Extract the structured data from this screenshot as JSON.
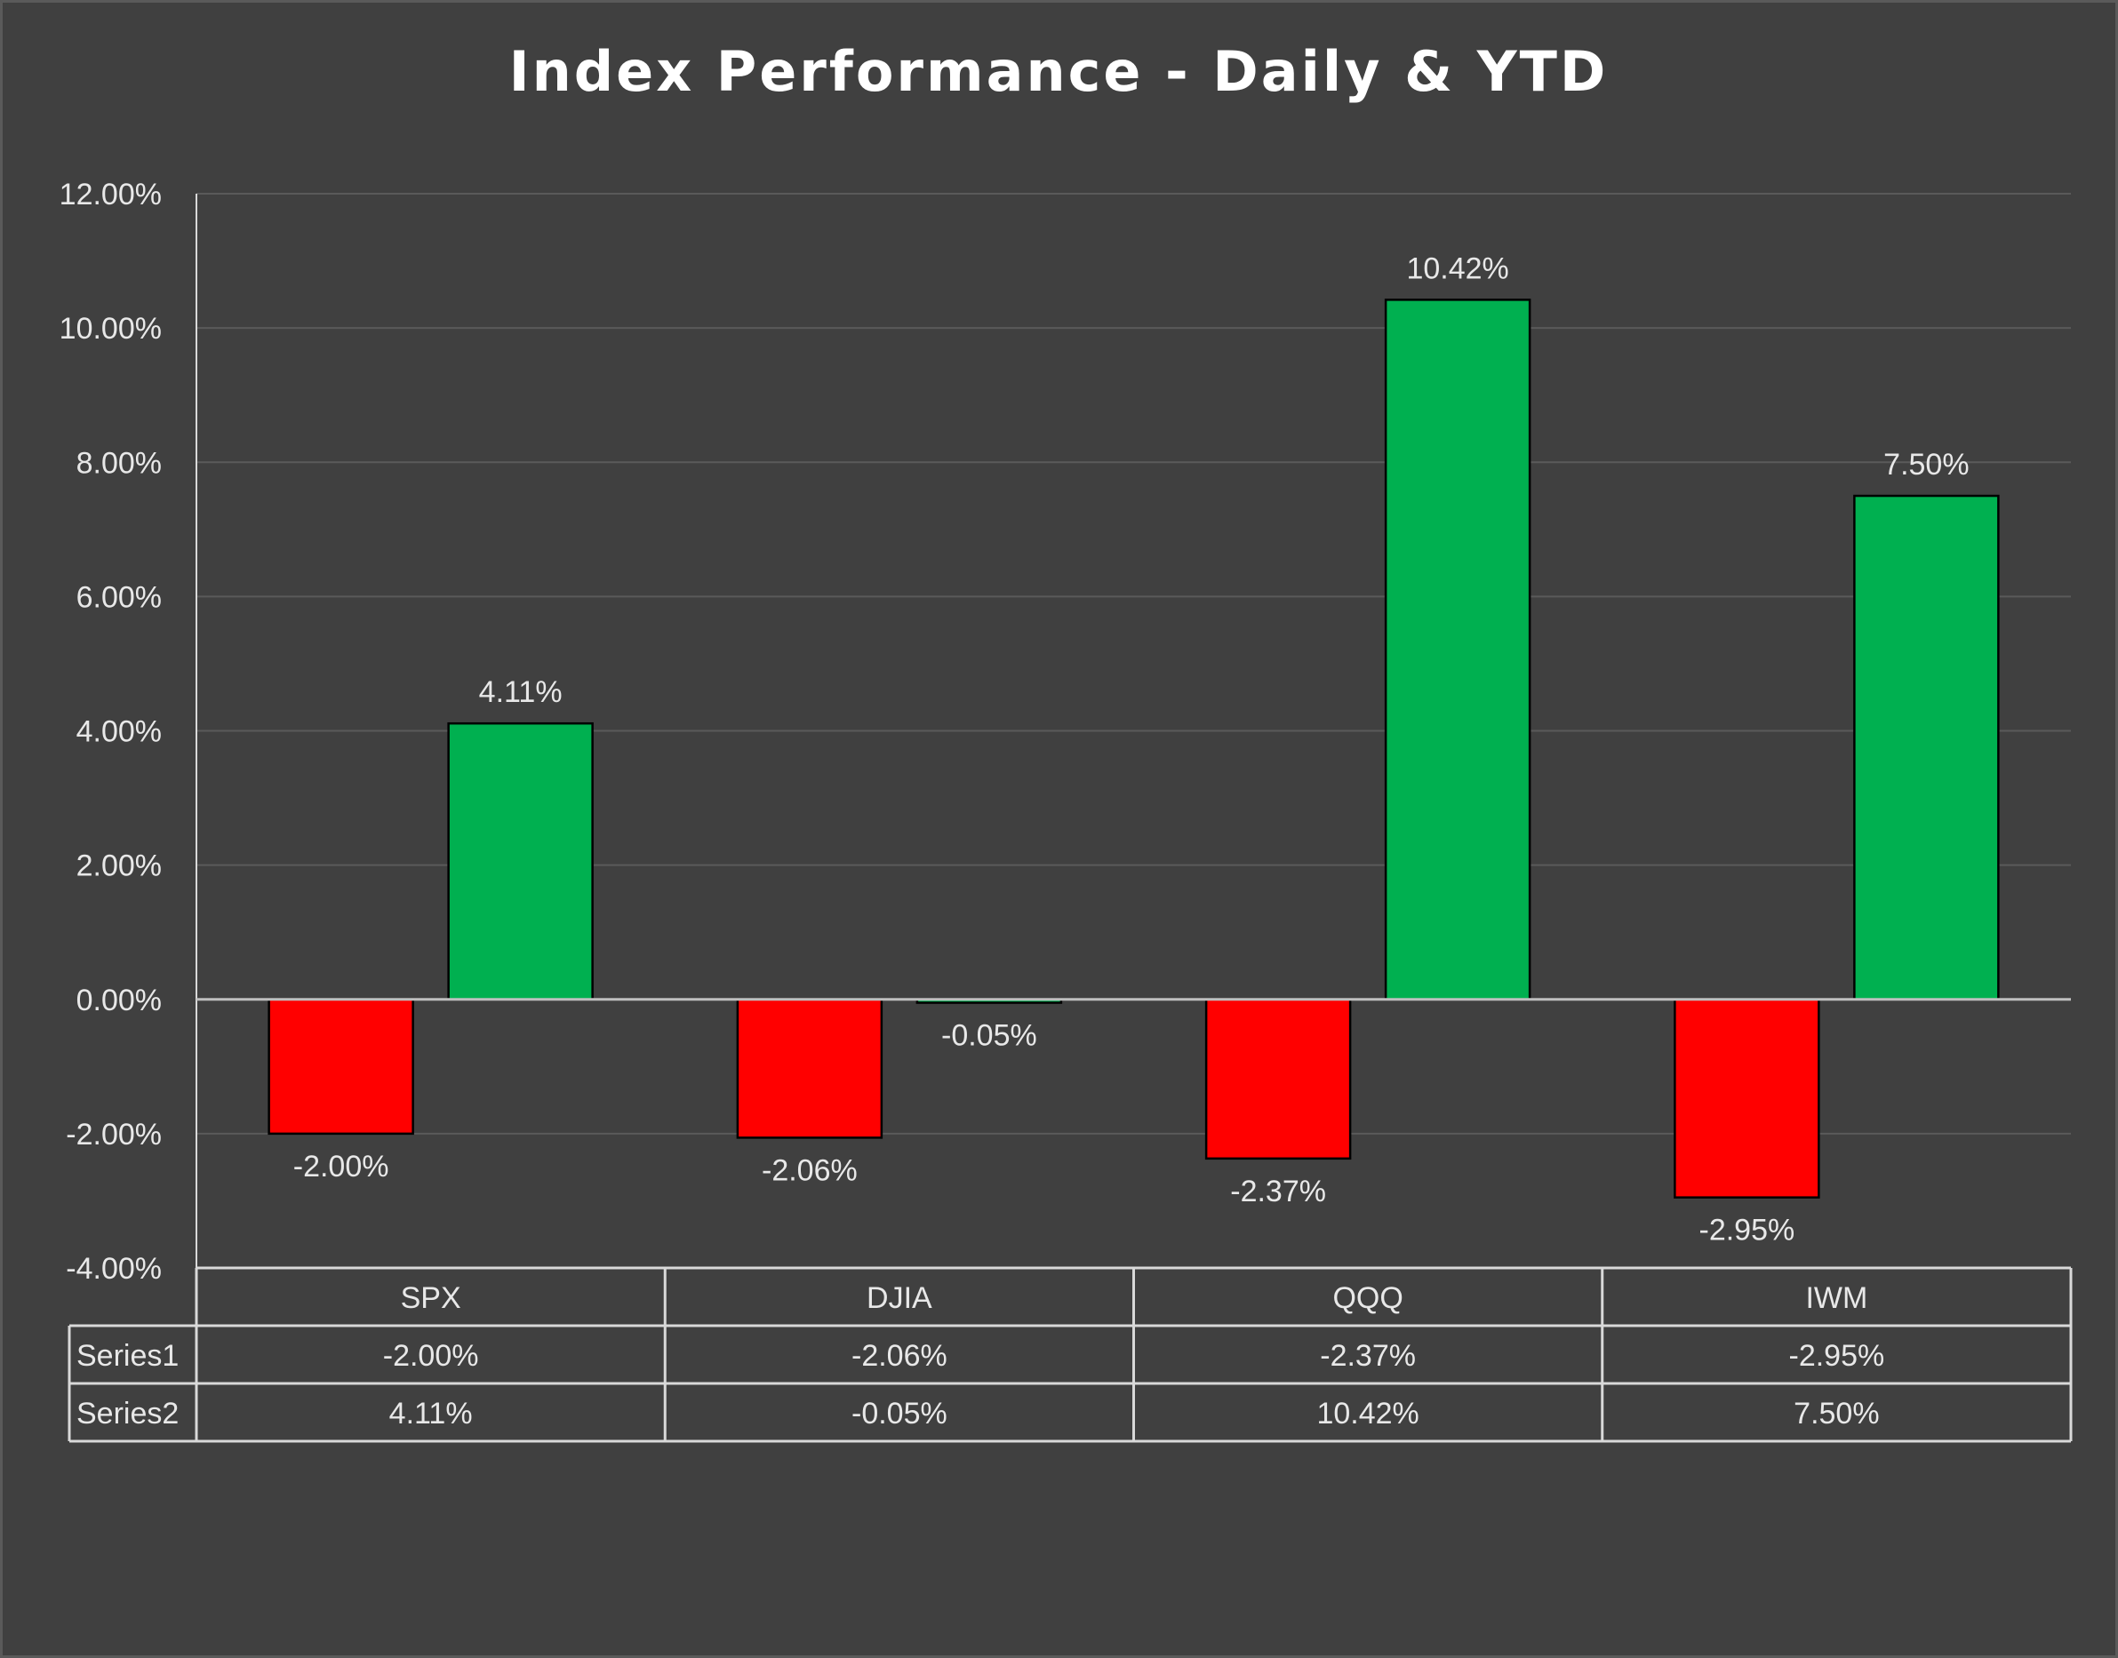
{
  "chart_data": {
    "type": "bar",
    "title": "Index Performance - Daily & YTD",
    "categories": [
      "SPX",
      "DJIA",
      "QQQ",
      "IWM"
    ],
    "series": [
      {
        "name": "Series1",
        "values": [
          -2.0,
          -2.06,
          -2.37,
          -2.95
        ],
        "labels": [
          "-2.00%",
          "-2.06%",
          "-2.37%",
          "-2.95%"
        ],
        "color": "#FF0000"
      },
      {
        "name": "Series2",
        "values": [
          4.11,
          -0.05,
          10.42,
          7.5
        ],
        "labels": [
          "4.11%",
          "-0.05%",
          "10.42%",
          "7.50%"
        ],
        "color": "#00B050"
      }
    ],
    "ylim": [
      -4,
      12
    ],
    "yticks": [
      12,
      10,
      8,
      6,
      4,
      2,
      0,
      -2,
      -4
    ],
    "ytick_labels": [
      "12.00%",
      "10.00%",
      "8.00%",
      "6.00%",
      "4.00%",
      "2.00%",
      "0.00%",
      "-2.00%",
      "-4.00%"
    ],
    "grid": true,
    "data_table": true,
    "background_color": "#404040",
    "gridline_color": "#5a5a5a",
    "zero_line_color": "#bfbfbf",
    "table_border_color": "#d9d9d9",
    "text_color": "#e8e8e8"
  }
}
